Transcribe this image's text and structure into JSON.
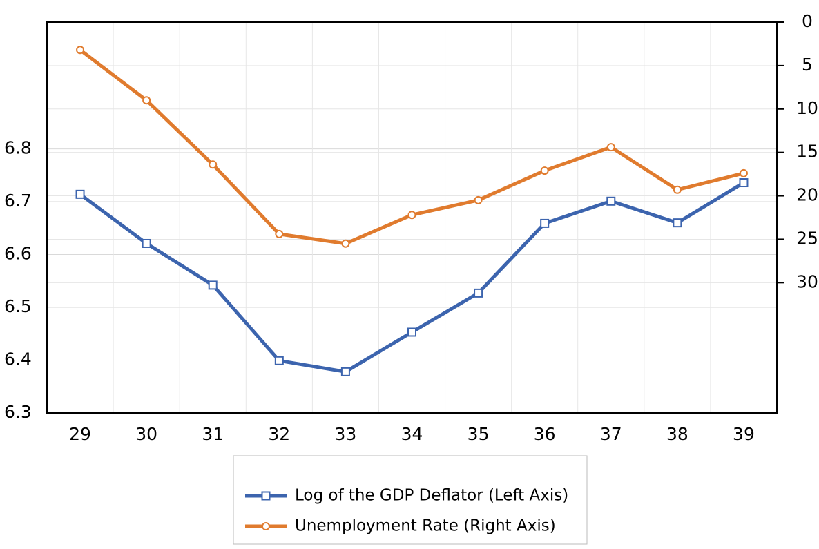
{
  "chart_data": {
    "type": "line",
    "categories": [
      "29",
      "30",
      "31",
      "32",
      "33",
      "34",
      "35",
      "36",
      "37",
      "38",
      "39"
    ],
    "series": [
      {
        "name": "Log of the GDP Deflator (Left Axis)",
        "color": "#3c64ae",
        "marker": "square",
        "values": [
          6.714,
          6.621,
          6.542,
          6.399,
          6.378,
          6.453,
          6.527,
          6.659,
          6.701,
          6.66,
          6.736
        ]
      },
      {
        "name": "Unemployment Rate (Right Axis)",
        "color": "#e07b2e",
        "marker": "circle",
        "axis": "y2",
        "values": [
          3.2,
          9.0,
          16.4,
          24.4,
          25.5,
          22.2,
          20.5,
          17.1,
          14.4,
          19.3,
          17.4
        ]
      }
    ],
    "ylim": [
      6.3,
      7.04
    ],
    "yticks": [
      6.3,
      6.4,
      6.5,
      6.6,
      6.7,
      6.8
    ],
    "y2lim": [
      45,
      0
    ],
    "y2ticks": [
      0,
      5,
      10,
      15,
      20,
      25,
      30
    ],
    "grid": true
  }
}
